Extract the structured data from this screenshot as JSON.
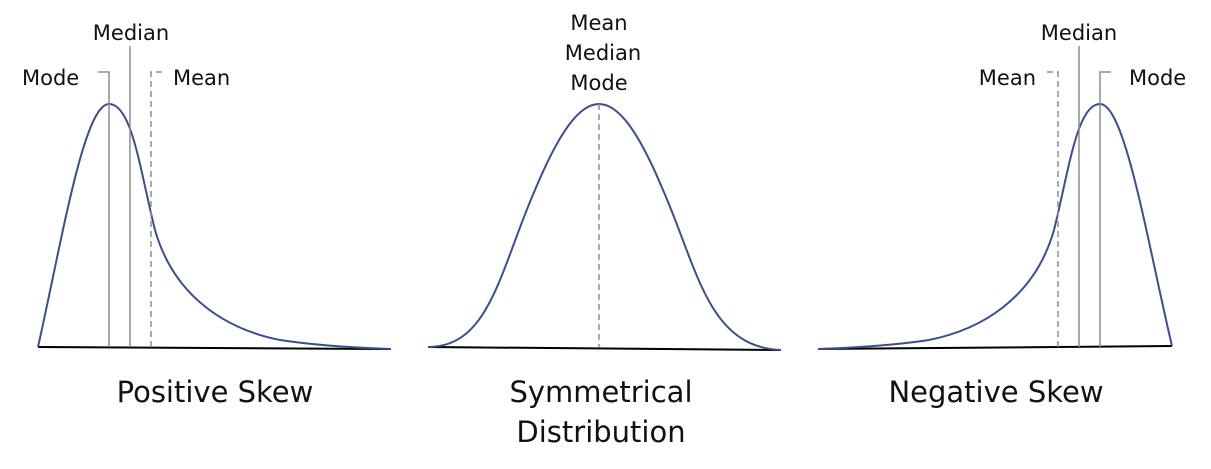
{
  "colors": {
    "curve": "#3b4f8f",
    "axis": "#000000",
    "line": "#8e8e8e",
    "text": "#111111",
    "background": "#ffffff"
  },
  "panels": [
    {
      "caption": [
        "Positive Skew"
      ],
      "labels": {
        "mode": "Mode",
        "median": "Median",
        "mean": "Mean"
      }
    },
    {
      "caption": [
        "Symmetrical",
        "Distribution"
      ],
      "labels": {
        "mean": "Mean",
        "median": "Median",
        "mode": "Mode"
      }
    },
    {
      "caption": [
        "Negative Skew"
      ],
      "labels": {
        "mean": "Mean",
        "median": "Median",
        "mode": "Mode"
      }
    }
  ]
}
